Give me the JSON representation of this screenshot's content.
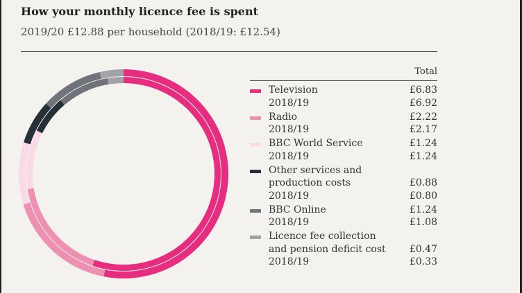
{
  "title": "How your monthly licence fee is spent",
  "subtitle": "2019/20 £12.88 per household (2018/19: £12.54)",
  "chart_data": {
    "type": "pie",
    "variant": "double donut (outer ring 2019/20, inner ring 2018/19)",
    "column_header": "Total",
    "prior_label": "2018/19",
    "series": [
      {
        "label_lines": [
          "Television"
        ],
        "value": 6.83,
        "prior": 6.92,
        "display": "£6.83",
        "prior_display": "£6.92",
        "color": "#e62d7f"
      },
      {
        "label_lines": [
          "Radio"
        ],
        "value": 2.22,
        "prior": 2.17,
        "display": "£2.22",
        "prior_display": "£2.17",
        "color": "#ee90b2"
      },
      {
        "label_lines": [
          "BBC World Service"
        ],
        "value": 1.24,
        "prior": 1.24,
        "display": "£1.24",
        "prior_display": "£1.24",
        "color": "#f9dbe7"
      },
      {
        "label_lines": [
          "Other services and",
          "production costs"
        ],
        "value": 0.88,
        "prior": 0.8,
        "display": "£0.88",
        "prior_display": "£0.80",
        "color": "#263039"
      },
      {
        "label_lines": [
          "BBC Online"
        ],
        "value": 1.24,
        "prior": 1.08,
        "display": "£1.24",
        "prior_display": "£1.08",
        "color": "#70737a"
      },
      {
        "label_lines": [
          "Licence fee collection",
          "and pension deficit cost"
        ],
        "value": 0.47,
        "prior": 0.33,
        "display": "£0.47",
        "prior_display": "£0.33",
        "color": "#a2a3aa"
      }
    ]
  }
}
